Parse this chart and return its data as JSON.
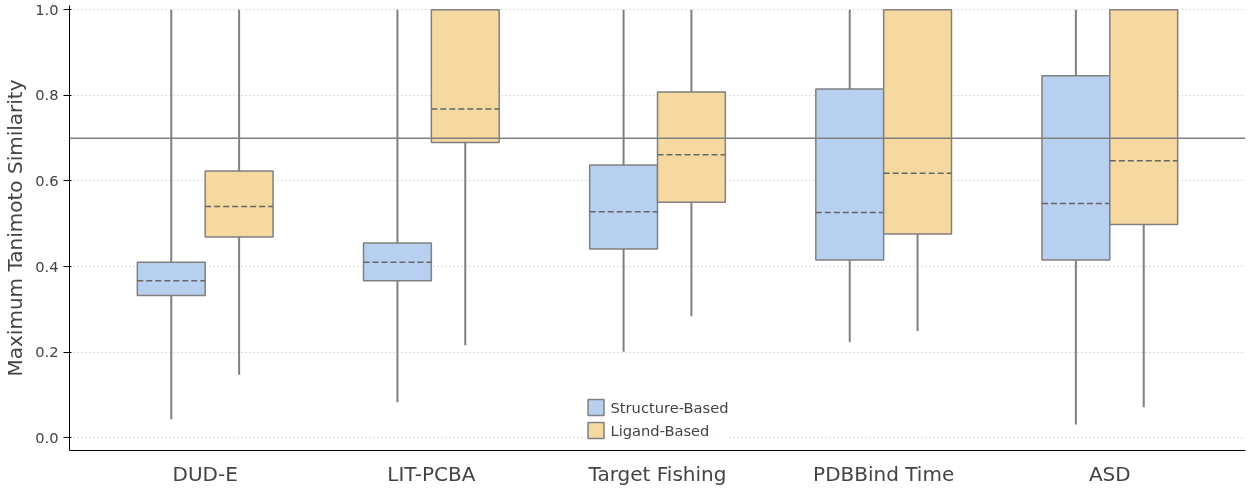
{
  "chart_data": {
    "type": "box",
    "ylabel": "Maximum Tanimoto Similarity",
    "categories": [
      "DUD-E",
      "LIT-PCBA",
      "Target Fishing",
      "PDBBind Time",
      "ASD"
    ],
    "series": [
      {
        "name": "Structure-Based",
        "color": "#b8d0f0",
        "boxes": [
          {
            "low": 0.043,
            "q1": 0.332,
            "median": 0.367,
            "q3": 0.41,
            "high": 1.0
          },
          {
            "low": 0.083,
            "q1": 0.367,
            "median": 0.41,
            "q3": 0.455,
            "high": 1.0
          },
          {
            "low": 0.201,
            "q1": 0.441,
            "median": 0.528,
            "q3": 0.637,
            "high": 1.0
          },
          {
            "low": 0.223,
            "q1": 0.415,
            "median": 0.526,
            "q3": 0.815,
            "high": 1.0
          },
          {
            "low": 0.031,
            "q1": 0.415,
            "median": 0.547,
            "q3": 0.846,
            "high": 1.0
          }
        ]
      },
      {
        "name": "Ligand-Based",
        "color": "#f5d9a0",
        "boxes": [
          {
            "low": 0.147,
            "q1": 0.469,
            "median": 0.54,
            "q3": 0.623,
            "high": 1.0
          },
          {
            "low": 0.216,
            "q1": 0.69,
            "median": 0.768,
            "q3": 1.0,
            "high": 1.0
          },
          {
            "low": 0.284,
            "q1": 0.55,
            "median": 0.661,
            "q3": 0.808,
            "high": 1.0
          },
          {
            "low": 0.249,
            "q1": 0.476,
            "median": 0.618,
            "q3": 1.0,
            "high": 1.0
          },
          {
            "low": 0.071,
            "q1": 0.498,
            "median": 0.647,
            "q3": 1.0,
            "high": 1.0
          }
        ]
      }
    ],
    "ylim": [
      -0.03,
      1.01
    ],
    "yticks": [
      {
        "value": 0,
        "label": "0.0"
      },
      {
        "value": 0.2,
        "label": "0.2"
      },
      {
        "value": 0.4,
        "label": "0.4"
      },
      {
        "value": 0.6,
        "label": "0.6"
      },
      {
        "value": 0.8,
        "label": "0.8"
      },
      {
        "value": 1,
        "label": "1.0"
      }
    ],
    "grid": "y",
    "legend": "bottom",
    "ref_lines": [
      {
        "axis": "y",
        "value": 0.7,
        "color": "#808080"
      }
    ]
  }
}
